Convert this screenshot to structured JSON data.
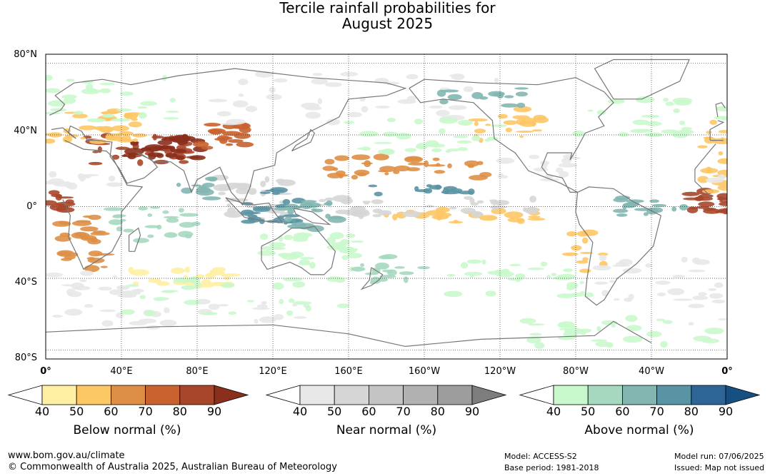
{
  "title": {
    "line1": "Tercile rainfall probabilities for",
    "line2": "August 2025"
  },
  "map": {
    "lat_labels": [
      "80°N",
      "40°N",
      "0°",
      "40°S",
      "80°S"
    ],
    "lon_labels": [
      "0°",
      "40°E",
      "80°E",
      "120°E",
      "160°E",
      "160°W",
      "120°W",
      "80°W",
      "40°W",
      "0°"
    ],
    "grid": true,
    "projection": "equirectangular"
  },
  "colorbars": [
    {
      "title": "Below normal (%)",
      "ticks": [
        "40",
        "50",
        "60",
        "70",
        "80",
        "90"
      ],
      "colors": [
        "#ffffff",
        "#ffefa3",
        "#fdc766",
        "#de8f45",
        "#c9622e",
        "#a8462b",
        "#8a2f1c"
      ]
    },
    {
      "title": "Near normal (%)",
      "ticks": [
        "40",
        "50",
        "60",
        "70",
        "80",
        "90"
      ],
      "colors": [
        "#ffffff",
        "#e8e8e8",
        "#d6d6d6",
        "#c4c4c4",
        "#b1b1b1",
        "#9d9d9d",
        "#7d7d7d"
      ]
    },
    {
      "title": "Above normal (%)",
      "ticks": [
        "40",
        "50",
        "60",
        "70",
        "80",
        "90"
      ],
      "colors": [
        "#ffffff",
        "#c9f8cc",
        "#a6d8bf",
        "#83b6b1",
        "#5a93a4",
        "#2e6496",
        "#164f82"
      ]
    }
  ],
  "footer": {
    "website": "www.bom.gov.au/climate",
    "copyright": "© Commonwealth of Australia 2025, Australian Bureau of Meteorology",
    "model": "Model: ACCESS-S2",
    "base_period": "Base period: 1981-2018",
    "model_run": "Model run: 07/06/2025",
    "issued": "Issued: Map not issued"
  }
}
